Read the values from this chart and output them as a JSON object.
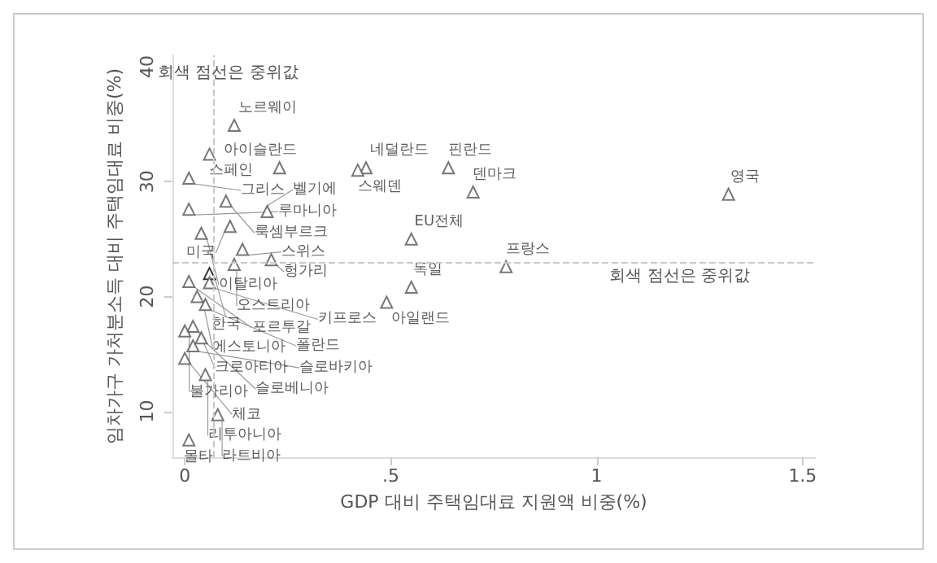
{
  "chart_data": {
    "type": "scatter",
    "xlabel": "GDP 대비 주택임대료 지원액 비중(%)",
    "ylabel": "임차가구 가처분소득 대비 주택임대료 비중(%)",
    "xlim": [
      -0.03,
      1.53
    ],
    "ylim": [
      6,
      41
    ],
    "xticks": [
      0,
      {
        "value": 0.5,
        "label": ".5"
      },
      1,
      1.5
    ],
    "yticks": [
      10,
      20,
      30,
      40
    ],
    "grid": false,
    "legend": false,
    "marker": "triangle",
    "ref_lines": [
      {
        "axis": "x",
        "value": 0.07,
        "label": "회색 점선은 중위값",
        "color": "#c8c8c8",
        "line_style": "dashed"
      },
      {
        "axis": "y",
        "value": 23,
        "label": "회색 점선은 중위값",
        "color": "#c8c8c8",
        "line_style": "dashed"
      }
    ],
    "series": [
      {
        "name": "노르웨이",
        "color": "#555555",
        "x": [
          0.12
        ],
        "values": [
          34.9
        ]
      },
      {
        "name": "스페인",
        "color": "#555555",
        "x": [
          0.06
        ],
        "values": [
          32.4
        ]
      },
      {
        "name": "아이슬란드",
        "color": "#555555",
        "x": [
          0.23
        ],
        "values": [
          31.2
        ]
      },
      {
        "name": "네덜란드",
        "color": "#555555",
        "x": [
          0.44
        ],
        "values": [
          31.2
        ]
      },
      {
        "name": "스웨덴",
        "color": "#555555",
        "x": [
          0.42
        ],
        "values": [
          31.0
        ]
      },
      {
        "name": "핀란드",
        "color": "#555555",
        "x": [
          0.64
        ],
        "values": [
          31.2
        ]
      },
      {
        "name": "덴마크",
        "color": "#555555",
        "x": [
          0.7
        ],
        "values": [
          29.1
        ]
      },
      {
        "name": "영국",
        "color": "#555555",
        "x": [
          1.32
        ],
        "values": [
          28.9
        ]
      },
      {
        "name": "그리스",
        "color": "#555555",
        "x": [
          0.01
        ],
        "values": [
          30.3
        ]
      },
      {
        "name": "룩셈부르크",
        "color": "#555555",
        "x": [
          0.1
        ],
        "values": [
          28.3
        ]
      },
      {
        "name": "루마니아",
        "color": "#555555",
        "x": [
          0.01
        ],
        "values": [
          27.6
        ]
      },
      {
        "name": "벨기에",
        "color": "#555555",
        "x": [
          0.2
        ],
        "values": [
          27.4
        ]
      },
      {
        "name": "미국",
        "color": "#555555",
        "x": [
          0.11
        ],
        "values": [
          26.1
        ]
      },
      {
        "name": "이탈리아",
        "color": "#555555",
        "x": [
          0.04
        ],
        "values": [
          25.5
        ]
      },
      {
        "name": "EU전체",
        "color": "#555555",
        "x": [
          0.55
        ],
        "values": [
          25.0
        ]
      },
      {
        "name": "스위스",
        "color": "#555555",
        "x": [
          0.14
        ],
        "values": [
          24.1
        ]
      },
      {
        "name": "헝가리",
        "color": "#555555",
        "x": [
          0.21
        ],
        "values": [
          23.2
        ]
      },
      {
        "name": "오스트리아",
        "color": "#555555",
        "x": [
          0.12
        ],
        "values": [
          22.8
        ]
      },
      {
        "name": "한국",
        "color": "#000000",
        "x": [
          0.06
        ],
        "values": [
          22.0
        ]
      },
      {
        "name": "프랑스",
        "color": "#555555",
        "x": [
          0.78
        ],
        "values": [
          22.6
        ]
      },
      {
        "name": "포르투갈",
        "color": "#555555",
        "x": [
          0.01
        ],
        "values": [
          21.3
        ]
      },
      {
        "name": "키프로스",
        "color": "#555555",
        "x": [
          0.06
        ],
        "values": [
          21.2
        ]
      },
      {
        "name": "독일",
        "color": "#555555",
        "x": [
          0.55
        ],
        "values": [
          20.8
        ]
      },
      {
        "name": "아일랜드",
        "color": "#555555",
        "x": [
          0.49
        ],
        "values": [
          19.5
        ]
      },
      {
        "name": "에스토니아",
        "color": "#555555",
        "x": [
          0.03
        ],
        "values": [
          20.0
        ]
      },
      {
        "name": "폴란드",
        "color": "#555555",
        "x": [
          0.05
        ],
        "values": [
          19.3
        ]
      },
      {
        "name": "크로아티아",
        "color": "#555555",
        "x": [
          0.02
        ],
        "values": [
          17.4
        ]
      },
      {
        "name": "불가리아",
        "color": "#555555",
        "x": [
          0.0
        ],
        "values": [
          17.0
        ]
      },
      {
        "name": "슬로베니아",
        "color": "#555555",
        "x": [
          0.04
        ],
        "values": [
          16.4
        ]
      },
      {
        "name": "슬로바키아",
        "color": "#555555",
        "x": [
          0.02
        ],
        "values": [
          15.7
        ]
      },
      {
        "name": "체코",
        "color": "#555555",
        "x": [
          0.0
        ],
        "values": [
          14.6
        ]
      },
      {
        "name": "리투아니아",
        "color": "#555555",
        "x": [
          0.05
        ],
        "values": [
          13.2
        ]
      },
      {
        "name": "라트비아",
        "color": "#555555",
        "x": [
          0.08
        ],
        "values": [
          9.7
        ]
      },
      {
        "name": "몰타",
        "color": "#555555",
        "x": [
          0.01
        ],
        "values": [
          7.5
        ]
      }
    ]
  }
}
